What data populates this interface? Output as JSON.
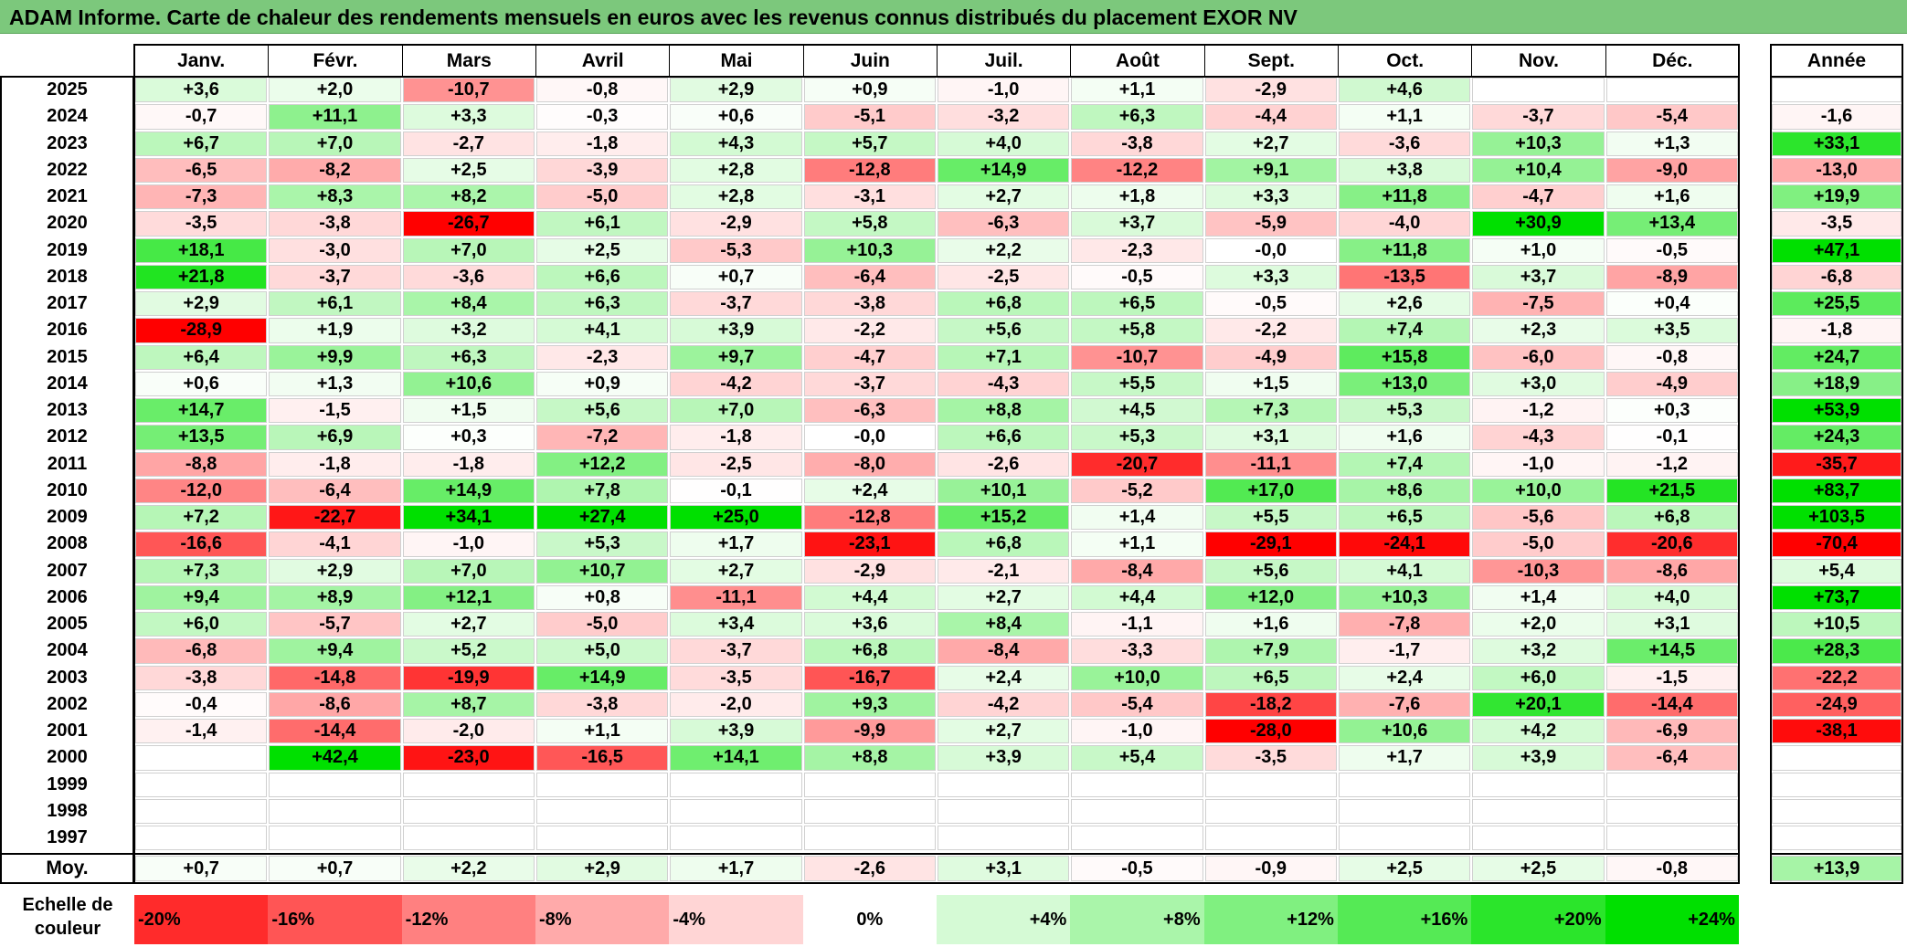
{
  "title": "ADAM Informe. Carte de chaleur des rendements mensuels en euros avec les revenus connus distribués du placement EXOR NV",
  "chart_data": {
    "type": "heatmap",
    "title": "ADAM Informe. Carte de chaleur des rendements mensuels en euros avec les revenus connus distribués du placement EXOR NV",
    "months": [
      "Janv.",
      "Févr.",
      "Mars",
      "Avril",
      "Mai",
      "Juin",
      "Juil.",
      "Août",
      "Sept.",
      "Oct.",
      "Nov.",
      "Déc."
    ],
    "year_header": "Année",
    "rows": [
      {
        "year": "2025",
        "values": [
          "+3,6",
          "+2,0",
          "-10,7",
          "-0,8",
          "+2,9",
          "+0,9",
          "-1,0",
          "+1,1",
          "-2,9",
          "+4,6",
          "",
          ""
        ],
        "annual": ""
      },
      {
        "year": "2024",
        "values": [
          "-0,7",
          "+11,1",
          "+3,3",
          "-0,3",
          "+0,6",
          "-5,1",
          "-3,2",
          "+6,3",
          "-4,4",
          "+1,1",
          "-3,7",
          "-5,4"
        ],
        "annual": "-1,6"
      },
      {
        "year": "2023",
        "values": [
          "+6,7",
          "+7,0",
          "-2,7",
          "-1,8",
          "+4,3",
          "+5,7",
          "+4,0",
          "-3,8",
          "+2,7",
          "-3,6",
          "+10,3",
          "+1,3"
        ],
        "annual": "+33,1"
      },
      {
        "year": "2022",
        "values": [
          "-6,5",
          "-8,2",
          "+2,5",
          "-3,9",
          "+2,8",
          "-12,8",
          "+14,9",
          "-12,2",
          "+9,1",
          "+3,8",
          "+10,4",
          "-9,0"
        ],
        "annual": "-13,0"
      },
      {
        "year": "2021",
        "values": [
          "-7,3",
          "+8,3",
          "+8,2",
          "-5,0",
          "+2,8",
          "-3,1",
          "+2,7",
          "+1,8",
          "+3,3",
          "+11,8",
          "-4,7",
          "+1,6"
        ],
        "annual": "+19,9"
      },
      {
        "year": "2020",
        "values": [
          "-3,5",
          "-3,8",
          "-26,7",
          "+6,1",
          "-2,9",
          "+5,8",
          "-6,3",
          "+3,7",
          "-5,9",
          "-4,0",
          "+30,9",
          "+13,4"
        ],
        "annual": "-3,5"
      },
      {
        "year": "2019",
        "values": [
          "+18,1",
          "-3,0",
          "+7,0",
          "+2,5",
          "-5,3",
          "+10,3",
          "+2,2",
          "-2,3",
          "-0,0",
          "+11,8",
          "+1,0",
          "-0,5"
        ],
        "annual": "+47,1"
      },
      {
        "year": "2018",
        "values": [
          "+21,8",
          "-3,7",
          "-3,6",
          "+6,6",
          "+0,7",
          "-6,4",
          "-2,5",
          "-0,5",
          "+3,3",
          "-13,5",
          "+3,7",
          "-8,9"
        ],
        "annual": "-6,8"
      },
      {
        "year": "2017",
        "values": [
          "+2,9",
          "+6,1",
          "+8,4",
          "+6,3",
          "-3,7",
          "-3,8",
          "+6,8",
          "+6,5",
          "-0,5",
          "+2,6",
          "-7,5",
          "+0,4"
        ],
        "annual": "+25,5"
      },
      {
        "year": "2016",
        "values": [
          "-28,9",
          "+1,9",
          "+3,2",
          "+4,1",
          "+3,9",
          "-2,2",
          "+5,6",
          "+5,8",
          "-2,2",
          "+7,4",
          "+2,3",
          "+3,5"
        ],
        "annual": "-1,8"
      },
      {
        "year": "2015",
        "values": [
          "+6,4",
          "+9,9",
          "+6,3",
          "-2,3",
          "+9,7",
          "-4,7",
          "+7,1",
          "-10,7",
          "-4,9",
          "+15,8",
          "-6,0",
          "-0,8"
        ],
        "annual": "+24,7"
      },
      {
        "year": "2014",
        "values": [
          "+0,6",
          "+1,3",
          "+10,6",
          "+0,9",
          "-4,2",
          "-3,7",
          "-4,3",
          "+5,5",
          "+1,5",
          "+13,0",
          "+3,0",
          "-4,9"
        ],
        "annual": "+18,9"
      },
      {
        "year": "2013",
        "values": [
          "+14,7",
          "-1,5",
          "+1,5",
          "+5,6",
          "+7,0",
          "-6,3",
          "+8,8",
          "+4,5",
          "+7,3",
          "+5,3",
          "-1,2",
          "+0,3"
        ],
        "annual": "+53,9"
      },
      {
        "year": "2012",
        "values": [
          "+13,5",
          "+6,9",
          "+0,3",
          "-7,2",
          "-1,8",
          "-0,0",
          "+6,6",
          "+5,3",
          "+3,1",
          "+1,6",
          "-4,3",
          "-0,1"
        ],
        "annual": "+24,3"
      },
      {
        "year": "2011",
        "values": [
          "-8,8",
          "-1,8",
          "-1,8",
          "+12,2",
          "-2,5",
          "-8,0",
          "-2,6",
          "-20,7",
          "-11,1",
          "+7,4",
          "-1,0",
          "-1,2"
        ],
        "annual": "-35,7"
      },
      {
        "year": "2010",
        "values": [
          "-12,0",
          "-6,4",
          "+14,9",
          "+7,8",
          "-0,1",
          "+2,4",
          "+10,1",
          "-5,2",
          "+17,0",
          "+8,6",
          "+10,0",
          "+21,5"
        ],
        "annual": "+83,7"
      },
      {
        "year": "2009",
        "values": [
          "+7,2",
          "-22,7",
          "+34,1",
          "+27,4",
          "+25,0",
          "-12,8",
          "+15,2",
          "+1,4",
          "+5,5",
          "+6,5",
          "-5,6",
          "+6,8"
        ],
        "annual": "+103,5"
      },
      {
        "year": "2008",
        "values": [
          "-16,6",
          "-4,1",
          "-1,0",
          "+5,3",
          "+1,7",
          "-23,1",
          "+6,8",
          "+1,1",
          "-29,1",
          "-24,1",
          "-5,0",
          "-20,6"
        ],
        "annual": "-70,4"
      },
      {
        "year": "2007",
        "values": [
          "+7,3",
          "+2,9",
          "+7,0",
          "+10,7",
          "+2,7",
          "-2,9",
          "-2,1",
          "-8,4",
          "+5,6",
          "+4,1",
          "-10,3",
          "-8,6"
        ],
        "annual": "+5,4"
      },
      {
        "year": "2006",
        "values": [
          "+9,4",
          "+8,9",
          "+12,1",
          "+0,8",
          "-11,1",
          "+4,4",
          "+2,7",
          "+4,4",
          "+12,0",
          "+10,3",
          "+1,4",
          "+4,0"
        ],
        "annual": "+73,7"
      },
      {
        "year": "2005",
        "values": [
          "+6,0",
          "-5,7",
          "+2,7",
          "-5,0",
          "+3,4",
          "+3,6",
          "+8,4",
          "-1,1",
          "+1,6",
          "-7,8",
          "+2,0",
          "+3,1"
        ],
        "annual": "+10,5"
      },
      {
        "year": "2004",
        "values": [
          "-6,8",
          "+9,4",
          "+5,2",
          "+5,0",
          "-3,7",
          "+6,8",
          "-8,4",
          "-3,3",
          "+7,9",
          "-1,7",
          "+3,2",
          "+14,5"
        ],
        "annual": "+28,3"
      },
      {
        "year": "2003",
        "values": [
          "-3,8",
          "-14,8",
          "-19,9",
          "+14,9",
          "-3,5",
          "-16,7",
          "+2,4",
          "+10,0",
          "+6,5",
          "+2,4",
          "+6,0",
          "-1,5"
        ],
        "annual": "-22,2"
      },
      {
        "year": "2002",
        "values": [
          "-0,4",
          "-8,6",
          "+8,7",
          "-3,8",
          "-2,0",
          "+9,3",
          "-4,2",
          "-5,4",
          "-18,2",
          "-7,6",
          "+20,1",
          "-14,4"
        ],
        "annual": "-24,9"
      },
      {
        "year": "2001",
        "values": [
          "-1,4",
          "-14,4",
          "-2,0",
          "+1,1",
          "+3,9",
          "-9,9",
          "+2,7",
          "-1,0",
          "-28,0",
          "+10,6",
          "+4,2",
          "-6,9"
        ],
        "annual": "-38,1"
      },
      {
        "year": "2000",
        "values": [
          "",
          "+42,4",
          "-23,0",
          "-16,5",
          "+14,1",
          "+8,8",
          "+3,9",
          "+5,4",
          "-3,5",
          "+1,7",
          "+3,9",
          "-6,4"
        ],
        "annual": ""
      },
      {
        "year": "1999",
        "values": [
          "",
          "",
          "",
          "",
          "",
          "",
          "",
          "",
          "",
          "",
          "",
          ""
        ],
        "annual": ""
      },
      {
        "year": "1998",
        "values": [
          "",
          "",
          "",
          "",
          "",
          "",
          "",
          "",
          "",
          "",
          "",
          ""
        ],
        "annual": ""
      },
      {
        "year": "1997",
        "values": [
          "",
          "",
          "",
          "",
          "",
          "",
          "",
          "",
          "",
          "",
          "",
          ""
        ],
        "annual": ""
      }
    ],
    "average": {
      "label": "Moy.",
      "values": [
        "+0,7",
        "+0,7",
        "+2,2",
        "+2,9",
        "+1,7",
        "-2,6",
        "+3,1",
        "-0,5",
        "-0,9",
        "+2,5",
        "+2,5",
        "-0,8"
      ],
      "annual": "+13,9"
    },
    "color_scale": {
      "label_line1": "Echelle de",
      "label_line2": "couleur",
      "stops": [
        "-20%",
        "-16%",
        "-12%",
        "-8%",
        "-4%",
        "0%",
        "+4%",
        "+8%",
        "+12%",
        "+16%",
        "+20%",
        "+24%"
      ],
      "negative_color": "#ff0000",
      "positive_color": "#00e000",
      "neutral_color": "#ffffff"
    }
  }
}
